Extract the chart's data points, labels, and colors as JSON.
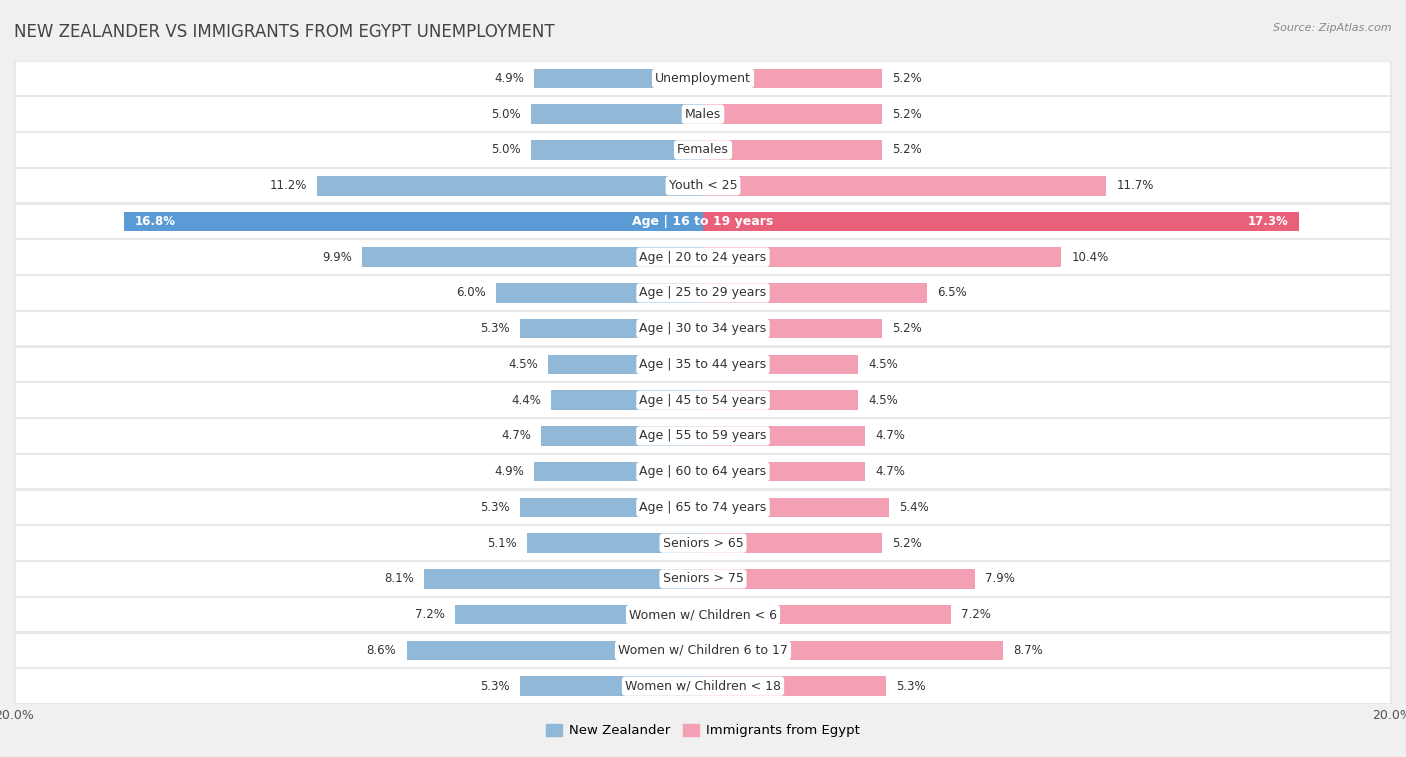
{
  "title": "NEW ZEALANDER VS IMMIGRANTS FROM EGYPT UNEMPLOYMENT",
  "source": "Source: ZipAtlas.com",
  "categories": [
    "Unemployment",
    "Males",
    "Females",
    "Youth < 25",
    "Age | 16 to 19 years",
    "Age | 20 to 24 years",
    "Age | 25 to 29 years",
    "Age | 30 to 34 years",
    "Age | 35 to 44 years",
    "Age | 45 to 54 years",
    "Age | 55 to 59 years",
    "Age | 60 to 64 years",
    "Age | 65 to 74 years",
    "Seniors > 65",
    "Seniors > 75",
    "Women w/ Children < 6",
    "Women w/ Children 6 to 17",
    "Women w/ Children < 18"
  ],
  "left_values": [
    4.9,
    5.0,
    5.0,
    11.2,
    16.8,
    9.9,
    6.0,
    5.3,
    4.5,
    4.4,
    4.7,
    4.9,
    5.3,
    5.1,
    8.1,
    7.2,
    8.6,
    5.3
  ],
  "right_values": [
    5.2,
    5.2,
    5.2,
    11.7,
    17.3,
    10.4,
    6.5,
    5.2,
    4.5,
    4.5,
    4.7,
    4.7,
    5.4,
    5.2,
    7.9,
    7.2,
    8.7,
    5.3
  ],
  "left_color": "#92b8d8",
  "right_color": "#f4a0b4",
  "highlight_left_color": "#5b9bd5",
  "highlight_right_color": "#e8607a",
  "highlight_row": 4,
  "axis_limit": 20.0,
  "left_label": "New Zealander",
  "right_label": "Immigrants from Egypt",
  "bg_color": "#f0f0f0",
  "row_bg_color": "#ffffff",
  "row_alt_bg_color": "#e8e8e8",
  "title_fontsize": 12,
  "label_fontsize": 9,
  "value_fontsize": 8.5
}
